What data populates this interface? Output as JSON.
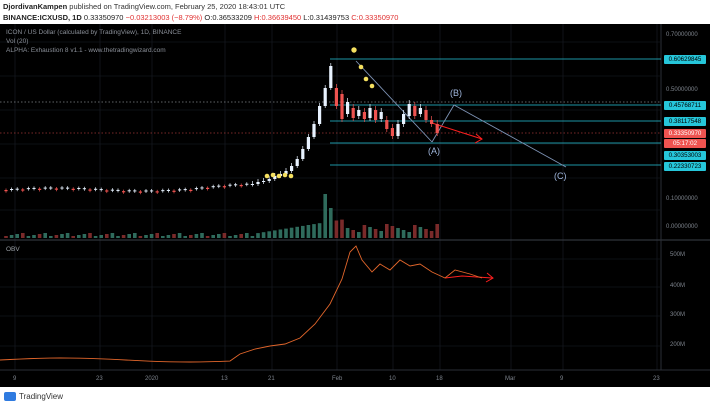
{
  "header": {
    "author": "DjordivanKampen",
    "published": "published on TradingView.com, February 25, 2020 18:43:01 UTC",
    "symbol": "BINANCE:ICXUSD, 1D",
    "last": "0.33350970",
    "change": "−0.03213003 (−8.79%)",
    "open": "O:0.36533209",
    "high": "H:0.36639450",
    "low": "L:0.31439753",
    "close": "C:0.33350970"
  },
  "legend": {
    "title": "ICON / US Dollar (calculated by TradingView), 1D, BINANCE",
    "vol": "Vol (20)",
    "indicator": "ALPHA: Exhaustion 8 v1.1 - www.thetradingwizard.com"
  },
  "price_axis": {
    "ticks": [
      "0.70000000",
      "0.50000000",
      "0.10000000",
      "0.00000000"
    ],
    "levels": [
      {
        "label": "0.60629845",
        "color": "#26c6da"
      },
      {
        "label": "0.45768711",
        "color": "#26c6da"
      },
      {
        "label": "0.38117548",
        "color": "#26c6da"
      },
      {
        "label": "0.33350970",
        "color": "#ef5350"
      },
      {
        "label": "05:17:02",
        "color": "#ef5350"
      },
      {
        "label": "0.30353003",
        "color": "#26c6da"
      },
      {
        "label": "0.22330723",
        "color": "#26c6da"
      }
    ]
  },
  "obv": {
    "label": "OBV",
    "ticks": [
      "500M",
      "400M",
      "300M",
      "200M"
    ]
  },
  "time_axis": {
    "ticks": [
      "9",
      "23",
      "2020",
      "13",
      "21",
      "Feb",
      "10",
      "18",
      "Mar",
      "9",
      "23"
    ]
  },
  "annotations": {
    "wave_a": "(A)",
    "wave_b": "(B)",
    "wave_c": "(C)"
  },
  "footer": {
    "brand": "TradingView"
  },
  "colors": {
    "up": "#e8f2ff",
    "down": "#ef5350",
    "cyan": "#26c6da",
    "obv_line": "#e2662b",
    "trend": "#7e93b5",
    "arrow": "#ff1f1f"
  }
}
